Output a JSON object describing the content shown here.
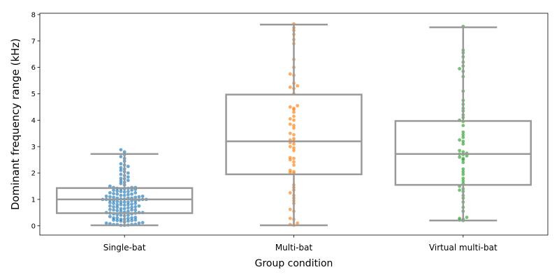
{
  "chart_data": {
    "type": "box-swarm",
    "title": "",
    "xlabel": "Group condition",
    "ylabel": "Dominant frequency range (kHz)",
    "ylim": [
      -0.35,
      8.05
    ],
    "yticks": [
      0,
      1,
      2,
      3,
      4,
      5,
      6,
      7,
      8
    ],
    "grid": false,
    "categories": [
      "Single-bat",
      "Multi-bat",
      "Virtual multi-bat"
    ],
    "series": [
      {
        "category": "Single-bat",
        "color": "#1f77b4",
        "box": {
          "whisker_low": 0.02,
          "q1": 0.48,
          "median": 1.0,
          "q3": 1.43,
          "whisker_high": 2.72
        },
        "points": [
          0.02,
          0.02,
          0.03,
          0.05,
          0.05,
          0.05,
          0.06,
          0.08,
          0.1,
          0.1,
          0.12,
          0.15,
          0.18,
          0.18,
          0.2,
          0.2,
          0.22,
          0.22,
          0.25,
          0.25,
          0.28,
          0.3,
          0.3,
          0.3,
          0.32,
          0.35,
          0.38,
          0.4,
          0.4,
          0.42,
          0.45,
          0.45,
          0.48,
          0.48,
          0.5,
          0.5,
          0.5,
          0.52,
          0.55,
          0.55,
          0.58,
          0.6,
          0.6,
          0.6,
          0.62,
          0.65,
          0.65,
          0.68,
          0.7,
          0.7,
          0.72,
          0.72,
          0.75,
          0.75,
          0.78,
          0.8,
          0.8,
          0.8,
          0.82,
          0.85,
          0.85,
          0.88,
          0.9,
          0.9,
          0.9,
          0.92,
          0.95,
          0.95,
          0.95,
          0.98,
          0.98,
          1.0,
          1.0,
          1.0,
          1.0,
          1.02,
          1.02,
          1.05,
          1.05,
          1.05,
          1.08,
          1.08,
          1.1,
          1.1,
          1.12,
          1.12,
          1.15,
          1.15,
          1.18,
          1.2,
          1.2,
          1.22,
          1.25,
          1.25,
          1.28,
          1.3,
          1.3,
          1.32,
          1.35,
          1.35,
          1.38,
          1.4,
          1.4,
          1.42,
          1.42,
          1.45,
          1.45,
          1.45,
          1.5,
          1.55,
          1.6,
          1.65,
          1.7,
          1.72,
          1.78,
          1.8,
          1.85,
          1.9,
          1.95,
          2.0,
          2.05,
          2.1,
          2.15,
          2.2,
          2.25,
          2.3,
          2.35,
          2.45,
          2.55,
          2.62,
          2.7,
          2.8,
          2.88
        ]
      },
      {
        "category": "Multi-bat",
        "color": "#ff7f0e",
        "box": {
          "whisker_low": 0.02,
          "q1": 1.95,
          "median": 3.2,
          "q3": 4.97,
          "whisker_high": 7.62
        },
        "points": [
          0.02,
          0.05,
          0.1,
          0.25,
          0.28,
          0.55,
          0.62,
          0.85,
          0.95,
          1.05,
          1.15,
          1.25,
          1.35,
          1.45,
          1.55,
          1.98,
          2.02,
          2.05,
          2.1,
          2.3,
          2.42,
          2.5,
          2.55,
          2.58,
          2.85,
          2.95,
          3.0,
          3.1,
          3.15,
          3.2,
          3.25,
          3.3,
          3.45,
          3.5,
          3.7,
          3.8,
          3.85,
          4.0,
          4.05,
          4.15,
          4.3,
          4.4,
          4.45,
          4.5,
          4.55,
          5.0,
          5.2,
          5.25,
          5.3,
          5.4,
          5.7,
          5.75,
          6.0,
          6.3,
          6.9,
          7.05,
          7.25,
          7.4,
          7.5,
          7.65
        ]
      },
      {
        "category": "Virtual multi-bat",
        "color": "#2ca02c",
        "box": {
          "whisker_low": 0.2,
          "q1": 1.55,
          "median": 2.72,
          "q3": 3.97,
          "whisker_high": 7.52
        },
        "points": [
          0.2,
          0.22,
          0.25,
          0.28,
          0.32,
          0.55,
          0.7,
          0.9,
          1.05,
          1.15,
          1.3,
          1.35,
          1.4,
          1.5,
          1.6,
          1.7,
          1.8,
          1.95,
          2.05,
          2.15,
          2.4,
          2.5,
          2.55,
          2.6,
          2.65,
          2.7,
          2.72,
          2.75,
          2.8,
          2.85,
          3.1,
          3.2,
          3.25,
          3.35,
          3.45,
          3.55,
          3.8,
          3.95,
          4.0,
          4.1,
          4.2,
          4.35,
          4.45,
          4.6,
          4.75,
          5.1,
          5.65,
          5.85,
          5.95,
          6.05,
          6.2,
          6.4,
          6.55,
          6.65,
          7.55
        ]
      }
    ]
  }
}
